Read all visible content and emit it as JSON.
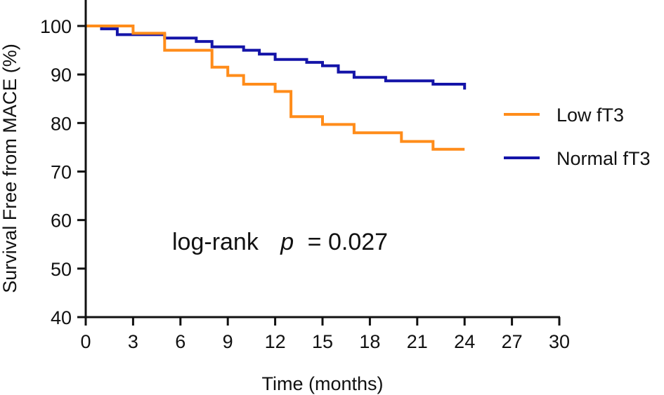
{
  "chart_data": {
    "type": "line",
    "subtype": "kaplan-meier step",
    "title": "",
    "xlabel": "Time (months)",
    "ylabel": "Survival Free from MACE (%)",
    "xlim": [
      0,
      30
    ],
    "ylim": [
      40,
      100
    ],
    "xticks": [
      0,
      3,
      6,
      9,
      12,
      15,
      18,
      21,
      24,
      27,
      30
    ],
    "yticks": [
      40,
      50,
      60,
      70,
      80,
      90,
      100
    ],
    "grid": false,
    "legend_position": "right",
    "annotation": {
      "prefix": "log-rank",
      "italic": "p",
      "suffix": "= 0.027"
    },
    "series": [
      {
        "name": "Low fT3",
        "color": "#FF8C1A",
        "points": [
          [
            0,
            100
          ],
          [
            3,
            100
          ],
          [
            3,
            98.5
          ],
          [
            5,
            98.5
          ],
          [
            5,
            95
          ],
          [
            8,
            95
          ],
          [
            8,
            91.5
          ],
          [
            9,
            91.5
          ],
          [
            9,
            89.8
          ],
          [
            10,
            89.8
          ],
          [
            10,
            88
          ],
          [
            12,
            88
          ],
          [
            12,
            86.5
          ],
          [
            13,
            86.5
          ],
          [
            13,
            81.3
          ],
          [
            15,
            81.3
          ],
          [
            15,
            79.7
          ],
          [
            17,
            79.7
          ],
          [
            17,
            78
          ],
          [
            20,
            78
          ],
          [
            20,
            76.2
          ],
          [
            22,
            76.2
          ],
          [
            22,
            74.6
          ],
          [
            24,
            74.6
          ]
        ]
      },
      {
        "name": "Normal fT3",
        "color": "#1414A8",
        "points": [
          [
            0,
            100
          ],
          [
            1,
            100
          ],
          [
            1,
            99.4
          ],
          [
            2,
            99.4
          ],
          [
            2,
            98.2
          ],
          [
            5,
            98.2
          ],
          [
            5,
            97.5
          ],
          [
            7,
            97.5
          ],
          [
            7,
            96.8
          ],
          [
            8,
            96.8
          ],
          [
            8,
            95.7
          ],
          [
            10,
            95.7
          ],
          [
            10,
            95
          ],
          [
            11,
            95
          ],
          [
            11,
            94.2
          ],
          [
            12,
            94.2
          ],
          [
            12,
            93.1
          ],
          [
            14,
            93.1
          ],
          [
            14,
            92.5
          ],
          [
            15,
            92.5
          ],
          [
            15,
            91.8
          ],
          [
            16,
            91.8
          ],
          [
            16,
            90.5
          ],
          [
            17,
            90.5
          ],
          [
            17,
            89.4
          ],
          [
            19,
            89.4
          ],
          [
            19,
            88.7
          ],
          [
            22,
            88.7
          ],
          [
            22,
            88
          ],
          [
            24,
            88
          ],
          [
            24,
            86.9
          ]
        ]
      }
    ]
  }
}
